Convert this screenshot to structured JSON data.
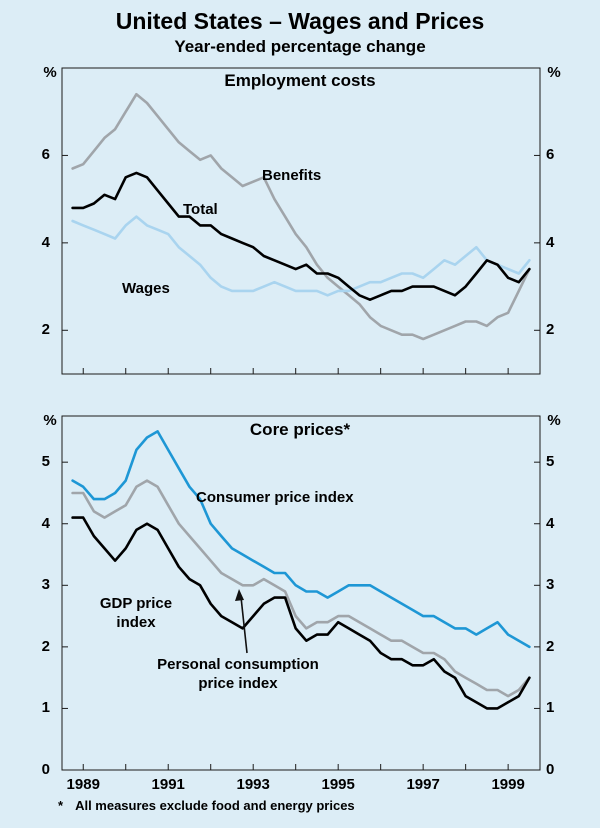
{
  "title": "United States – Wages and Prices",
  "subtitle": "Year-ended percentage change",
  "footnote": {
    "marker": "*",
    "text": "All measures exclude food and energy prices"
  },
  "labels": {
    "gdp_two_line": "GDP price\nindex",
    "pce_two_line": "Personal consumption\nprice index"
  },
  "chart_data": [
    {
      "type": "line",
      "panel": "top",
      "title": "Employment costs",
      "unit_label": "%",
      "ylim": [
        1,
        8
      ],
      "yticks": [
        2,
        4,
        6
      ],
      "xlim": [
        1988.5,
        1999.75
      ],
      "x_start": 1988.75,
      "x_step": 0.25,
      "xticks": [
        1989,
        1990,
        1991,
        1992,
        1993,
        1994,
        1995,
        1996,
        1997,
        1998,
        1999
      ],
      "xtick_labels": [
        1989,
        1991,
        1993,
        1995,
        1997,
        1999
      ],
      "series": [
        {
          "name": "Benefits",
          "color": "#a0a5aa",
          "values": [
            5.7,
            5.8,
            6.1,
            6.4,
            6.6,
            7.0,
            7.4,
            7.2,
            6.9,
            6.6,
            6.3,
            6.1,
            5.9,
            6.0,
            5.7,
            5.5,
            5.3,
            5.4,
            5.5,
            5.0,
            4.6,
            4.2,
            3.9,
            3.5,
            3.2,
            3.0,
            2.8,
            2.6,
            2.3,
            2.1,
            2.0,
            1.9,
            1.9,
            1.8,
            1.9,
            2.0,
            2.1,
            2.2,
            2.2,
            2.1,
            2.3,
            2.4,
            2.9,
            3.4
          ]
        },
        {
          "name": "Wages",
          "color": "#a9d4ef",
          "values": [
            4.5,
            4.4,
            4.3,
            4.2,
            4.1,
            4.4,
            4.6,
            4.4,
            4.3,
            4.2,
            3.9,
            3.7,
            3.5,
            3.2,
            3.0,
            2.9,
            2.9,
            2.9,
            3.0,
            3.1,
            3.0,
            2.9,
            2.9,
            2.9,
            2.8,
            2.9,
            2.9,
            3.0,
            3.1,
            3.1,
            3.2,
            3.3,
            3.3,
            3.2,
            3.4,
            3.6,
            3.5,
            3.7,
            3.9,
            3.6,
            3.5,
            3.4,
            3.3,
            3.6
          ]
        },
        {
          "name": "Total",
          "color": "#000000",
          "values": [
            4.8,
            4.8,
            4.9,
            5.1,
            5.0,
            5.5,
            5.6,
            5.5,
            5.2,
            4.9,
            4.6,
            4.6,
            4.4,
            4.4,
            4.2,
            4.1,
            4.0,
            3.9,
            3.7,
            3.6,
            3.5,
            3.4,
            3.5,
            3.3,
            3.3,
            3.2,
            3.0,
            2.8,
            2.7,
            2.8,
            2.9,
            2.9,
            3.0,
            3.0,
            3.0,
            2.9,
            2.8,
            3.0,
            3.3,
            3.6,
            3.5,
            3.2,
            3.1,
            3.4
          ]
        }
      ]
    },
    {
      "type": "line",
      "panel": "bottom",
      "title": "Core prices*",
      "unit_label": "%",
      "ylim": [
        0,
        5.75
      ],
      "yticks": [
        0,
        1,
        2,
        3,
        4,
        5
      ],
      "xlim": [
        1988.5,
        1999.75
      ],
      "x_start": 1988.75,
      "x_step": 0.25,
      "xticks": [
        1989,
        1990,
        1991,
        1992,
        1993,
        1994,
        1995,
        1996,
        1997,
        1998,
        1999
      ],
      "xtick_labels": [
        1989,
        1991,
        1993,
        1995,
        1997,
        1999
      ],
      "series": [
        {
          "name": "Personal consumption price index",
          "color": "#a0a5aa",
          "values": [
            4.5,
            4.5,
            4.2,
            4.1,
            4.2,
            4.3,
            4.6,
            4.7,
            4.6,
            4.3,
            4.0,
            3.8,
            3.6,
            3.4,
            3.2,
            3.1,
            3.0,
            3.0,
            3.1,
            3.0,
            2.9,
            2.5,
            2.3,
            2.4,
            2.4,
            2.5,
            2.5,
            2.4,
            2.3,
            2.2,
            2.1,
            2.1,
            2.0,
            1.9,
            1.9,
            1.8,
            1.6,
            1.5,
            1.4,
            1.3,
            1.3,
            1.2,
            1.3,
            1.5
          ]
        },
        {
          "name": "Consumer price index",
          "color": "#1e97d5",
          "values": [
            4.7,
            4.6,
            4.4,
            4.4,
            4.5,
            4.7,
            5.2,
            5.4,
            5.5,
            5.2,
            4.9,
            4.6,
            4.4,
            4.0,
            3.8,
            3.6,
            3.5,
            3.4,
            3.3,
            3.2,
            3.2,
            3.0,
            2.9,
            2.9,
            2.8,
            2.9,
            3.0,
            3.0,
            3.0,
            2.9,
            2.8,
            2.7,
            2.6,
            2.5,
            2.5,
            2.4,
            2.3,
            2.3,
            2.2,
            2.3,
            2.4,
            2.2,
            2.1,
            2.0
          ]
        },
        {
          "name": "GDP price index",
          "color": "#000000",
          "values": [
            4.1,
            4.1,
            3.8,
            3.6,
            3.4,
            3.6,
            3.9,
            4.0,
            3.9,
            3.6,
            3.3,
            3.1,
            3.0,
            2.7,
            2.5,
            2.4,
            2.3,
            2.5,
            2.7,
            2.8,
            2.8,
            2.3,
            2.1,
            2.2,
            2.2,
            2.4,
            2.3,
            2.2,
            2.1,
            1.9,
            1.8,
            1.8,
            1.7,
            1.7,
            1.8,
            1.6,
            1.5,
            1.2,
            1.1,
            1.0,
            1.0,
            1.1,
            1.2,
            1.5
          ]
        }
      ]
    }
  ]
}
